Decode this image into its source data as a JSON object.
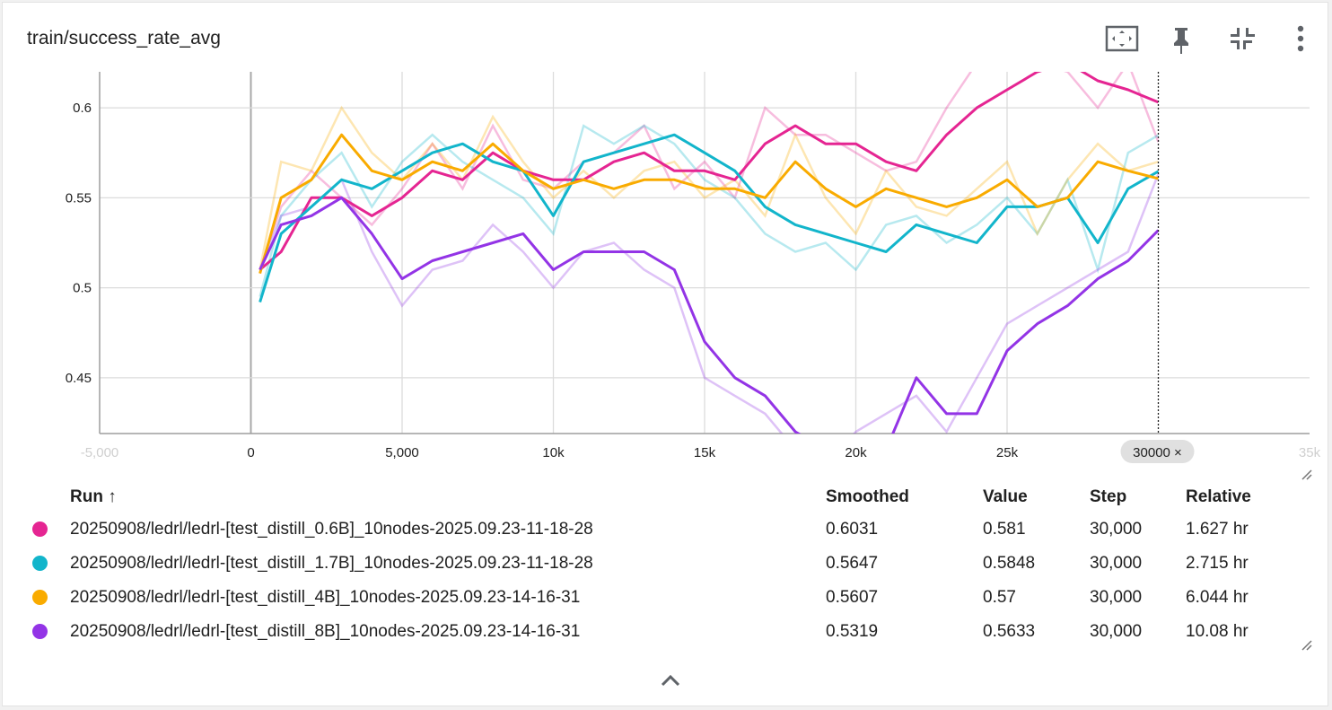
{
  "card": {
    "title": "train/success_rate_avg",
    "toolbar": [
      {
        "name": "fit-domain-button",
        "icon": "fit-to-domain-icon"
      },
      {
        "name": "pin-button",
        "icon": "pin-icon"
      },
      {
        "name": "collapse-button",
        "icon": "collapse-icon"
      },
      {
        "name": "more-options-button",
        "icon": "more-vertical-icon"
      }
    ]
  },
  "chart_data": {
    "type": "line",
    "title": "train/success_rate_avg",
    "xlabel": "",
    "ylabel": "",
    "xlim": [
      -5000,
      35000
    ],
    "ylim": [
      0.419,
      0.62
    ],
    "x_ticks": [
      -5000,
      0,
      5000,
      10000,
      15000,
      20000,
      25000,
      35000
    ],
    "x_tick_labels": [
      "-5,000",
      "0",
      "5,000",
      "10k",
      "15k",
      "20k",
      "25k",
      "35k"
    ],
    "y_ticks": [
      0.45,
      0.5,
      0.55,
      0.6
    ],
    "y_tick_labels": [
      "0.45",
      "0.5",
      "0.55",
      "0.6"
    ],
    "grid": true,
    "cursor_step": 30000,
    "cursor_label": "30000 ×",
    "series": [
      {
        "name": "20250908/ledrl/ledrl-[test_distill_0.6B]_10nodes-2025.09.23-11-18-28",
        "color": "#e52592",
        "x": [
          300,
          1000,
          2000,
          3000,
          4000,
          5000,
          6000,
          7000,
          8000,
          9000,
          10000,
          11000,
          12000,
          13000,
          14000,
          15000,
          16000,
          17000,
          18000,
          19000,
          20000,
          21000,
          22000,
          23000,
          24000,
          25000,
          26000,
          27000,
          28000,
          29000,
          30000
        ],
        "smoothed": [
          0.51,
          0.52,
          0.55,
          0.55,
          0.54,
          0.55,
          0.565,
          0.56,
          0.575,
          0.565,
          0.56,
          0.56,
          0.57,
          0.575,
          0.565,
          0.565,
          0.56,
          0.58,
          0.59,
          0.58,
          0.58,
          0.57,
          0.565,
          0.585,
          0.6,
          0.61,
          0.62,
          0.625,
          0.615,
          0.61,
          0.6031
        ],
        "values": [
          0.51,
          0.545,
          0.565,
          0.55,
          0.535,
          0.555,
          0.58,
          0.555,
          0.59,
          0.56,
          0.555,
          0.57,
          0.575,
          0.59,
          0.555,
          0.57,
          0.55,
          0.6,
          0.585,
          0.585,
          0.575,
          0.565,
          0.57,
          0.6,
          0.625,
          0.63,
          0.625,
          0.62,
          0.6,
          0.625,
          0.581
        ]
      },
      {
        "name": "20250908/ledrl/ledrl-[test_distill_1.7B]_10nodes-2025.09.23-11-18-28",
        "color": "#12b5cb",
        "x": [
          300,
          1000,
          2000,
          3000,
          4000,
          5000,
          6000,
          7000,
          8000,
          9000,
          10000,
          11000,
          12000,
          13000,
          14000,
          15000,
          16000,
          17000,
          18000,
          19000,
          20000,
          21000,
          22000,
          23000,
          24000,
          25000,
          26000,
          27000,
          28000,
          29000,
          30000
        ],
        "smoothed": [
          0.492,
          0.53,
          0.545,
          0.56,
          0.555,
          0.565,
          0.575,
          0.58,
          0.57,
          0.565,
          0.54,
          0.57,
          0.575,
          0.58,
          0.585,
          0.575,
          0.565,
          0.545,
          0.535,
          0.53,
          0.525,
          0.52,
          0.535,
          0.53,
          0.525,
          0.545,
          0.545,
          0.55,
          0.525,
          0.555,
          0.5647
        ],
        "values": [
          0.495,
          0.54,
          0.56,
          0.575,
          0.545,
          0.57,
          0.585,
          0.57,
          0.56,
          0.55,
          0.53,
          0.59,
          0.58,
          0.59,
          0.58,
          0.56,
          0.55,
          0.53,
          0.52,
          0.525,
          0.51,
          0.535,
          0.54,
          0.525,
          0.535,
          0.55,
          0.53,
          0.56,
          0.51,
          0.575,
          0.5848
        ]
      },
      {
        "name": "20250908/ledrl/ledrl-[test_distill_4B]_10nodes-2025.09.23-14-16-31",
        "color": "#f9ab00",
        "x": [
          300,
          1000,
          2000,
          3000,
          4000,
          5000,
          6000,
          7000,
          8000,
          9000,
          10000,
          11000,
          12000,
          13000,
          14000,
          15000,
          16000,
          17000,
          18000,
          19000,
          20000,
          21000,
          22000,
          23000,
          24000,
          25000,
          26000,
          27000,
          28000,
          29000,
          30000
        ],
        "smoothed": [
          0.508,
          0.55,
          0.56,
          0.585,
          0.565,
          0.56,
          0.57,
          0.565,
          0.58,
          0.565,
          0.555,
          0.56,
          0.555,
          0.56,
          0.56,
          0.555,
          0.555,
          0.55,
          0.57,
          0.555,
          0.545,
          0.555,
          0.55,
          0.545,
          0.55,
          0.56,
          0.545,
          0.55,
          0.57,
          0.565,
          0.5607
        ],
        "values": [
          0.51,
          0.57,
          0.565,
          0.6,
          0.575,
          0.56,
          0.58,
          0.56,
          0.595,
          0.57,
          0.55,
          0.565,
          0.55,
          0.565,
          0.57,
          0.55,
          0.56,
          0.54,
          0.585,
          0.55,
          0.53,
          0.565,
          0.545,
          0.54,
          0.555,
          0.57,
          0.53,
          0.56,
          0.58,
          0.565,
          0.57
        ]
      },
      {
        "name": "20250908/ledrl/ledrl-[test_distill_8B]_10nodes-2025.09.23-14-16-31",
        "color": "#9334e6",
        "x": [
          300,
          1000,
          2000,
          3000,
          4000,
          5000,
          6000,
          7000,
          8000,
          9000,
          10000,
          11000,
          12000,
          13000,
          14000,
          15000,
          16000,
          17000,
          18000,
          19000,
          20000,
          21000,
          22000,
          23000,
          24000,
          25000,
          26000,
          27000,
          28000,
          29000,
          30000
        ],
        "smoothed": [
          0.51,
          0.535,
          0.54,
          0.55,
          0.53,
          0.505,
          0.515,
          0.52,
          0.525,
          0.53,
          0.51,
          0.52,
          0.52,
          0.52,
          0.51,
          0.47,
          0.45,
          0.44,
          0.42,
          0.41,
          0.405,
          0.41,
          0.45,
          0.43,
          0.43,
          0.465,
          0.48,
          0.49,
          0.505,
          0.515,
          0.5319
        ],
        "values": [
          0.51,
          0.54,
          0.545,
          0.56,
          0.52,
          0.49,
          0.51,
          0.515,
          0.535,
          0.52,
          0.5,
          0.52,
          0.525,
          0.51,
          0.5,
          0.45,
          0.44,
          0.43,
          0.41,
          0.4,
          0.42,
          0.43,
          0.44,
          0.42,
          0.45,
          0.48,
          0.49,
          0.5,
          0.51,
          0.52,
          0.5633
        ]
      }
    ]
  },
  "table": {
    "headers": {
      "run": "Run ↑",
      "smoothed": "Smoothed",
      "value": "Value",
      "step": "Step",
      "relative": "Relative"
    },
    "rows": [
      {
        "run": "20250908/ledrl/ledrl-[test_distill_0.6B]_10nodes-2025.09.23-11-18-28",
        "color": "#e52592",
        "smoothed": "0.6031",
        "value": "0.581",
        "step": "30,000",
        "relative": "1.627 hr"
      },
      {
        "run": "20250908/ledrl/ledrl-[test_distill_1.7B]_10nodes-2025.09.23-11-18-28",
        "color": "#12b5cb",
        "smoothed": "0.5647",
        "value": "0.5848",
        "step": "30,000",
        "relative": "2.715 hr"
      },
      {
        "run": "20250908/ledrl/ledrl-[test_distill_4B]_10nodes-2025.09.23-14-16-31",
        "color": "#f9ab00",
        "smoothed": "0.5607",
        "value": "0.57",
        "step": "30,000",
        "relative": "6.044 hr"
      },
      {
        "run": "20250908/ledrl/ledrl-[test_distill_8B]_10nodes-2025.09.23-14-16-31",
        "color": "#9334e6",
        "smoothed": "0.5319",
        "value": "0.5633",
        "step": "30,000",
        "relative": "10.08 hr"
      }
    ]
  },
  "footer": {
    "expand_icon": "chevron-up-icon"
  }
}
